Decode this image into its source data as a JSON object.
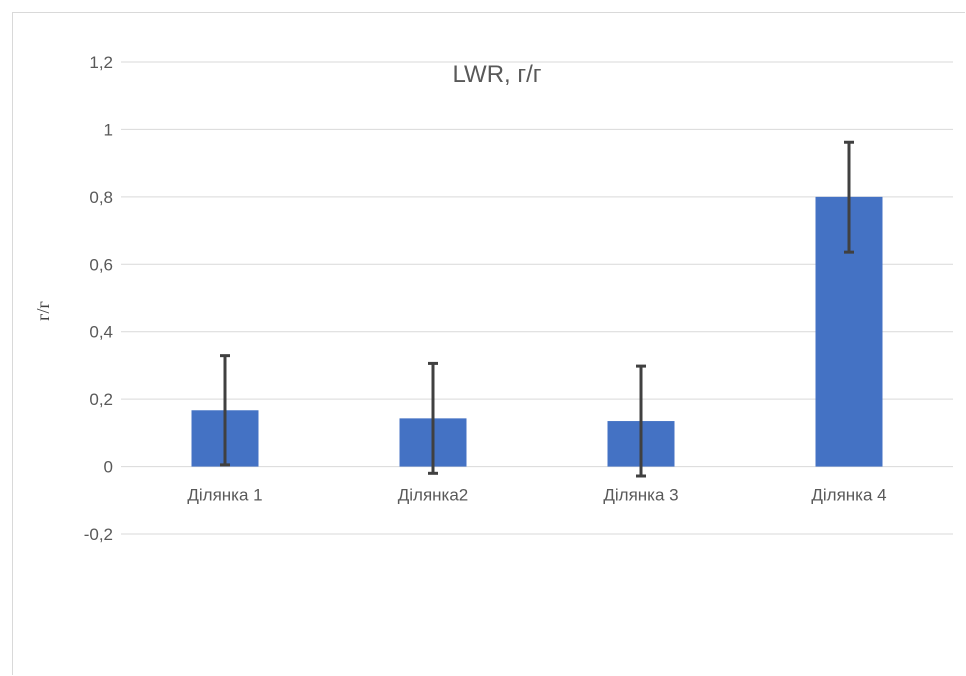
{
  "chart_data": {
    "type": "bar",
    "title": "LWR, г/г",
    "xlabel": "",
    "ylabel": "г/г",
    "categories": [
      "Ділянка 1",
      "Ділянка2",
      "Ділянка 3",
      "Ділянка 4"
    ],
    "series": [
      {
        "values": [
          0.167,
          0.143,
          0.135,
          0.8
        ],
        "error_minus": [
          0.162,
          0.163,
          0.163,
          0.164
        ],
        "error_plus": [
          0.162,
          0.163,
          0.163,
          0.162
        ]
      }
    ],
    "ylim": [
      -0.2,
      1.2
    ],
    "y_ticks": [
      -0.2,
      0,
      0.2,
      0.4,
      0.6,
      0.8,
      1,
      1.2
    ],
    "y_tick_labels": [
      "-0,2",
      "0",
      "0,2",
      "0,4",
      "0,6",
      "0,8",
      "1",
      "1,2"
    ],
    "grid": true,
    "legend": "none",
    "colors": {
      "bar": "#4472c4",
      "error_bar": "#404040",
      "grid": "#d9d9d9",
      "text": "#595959"
    }
  }
}
